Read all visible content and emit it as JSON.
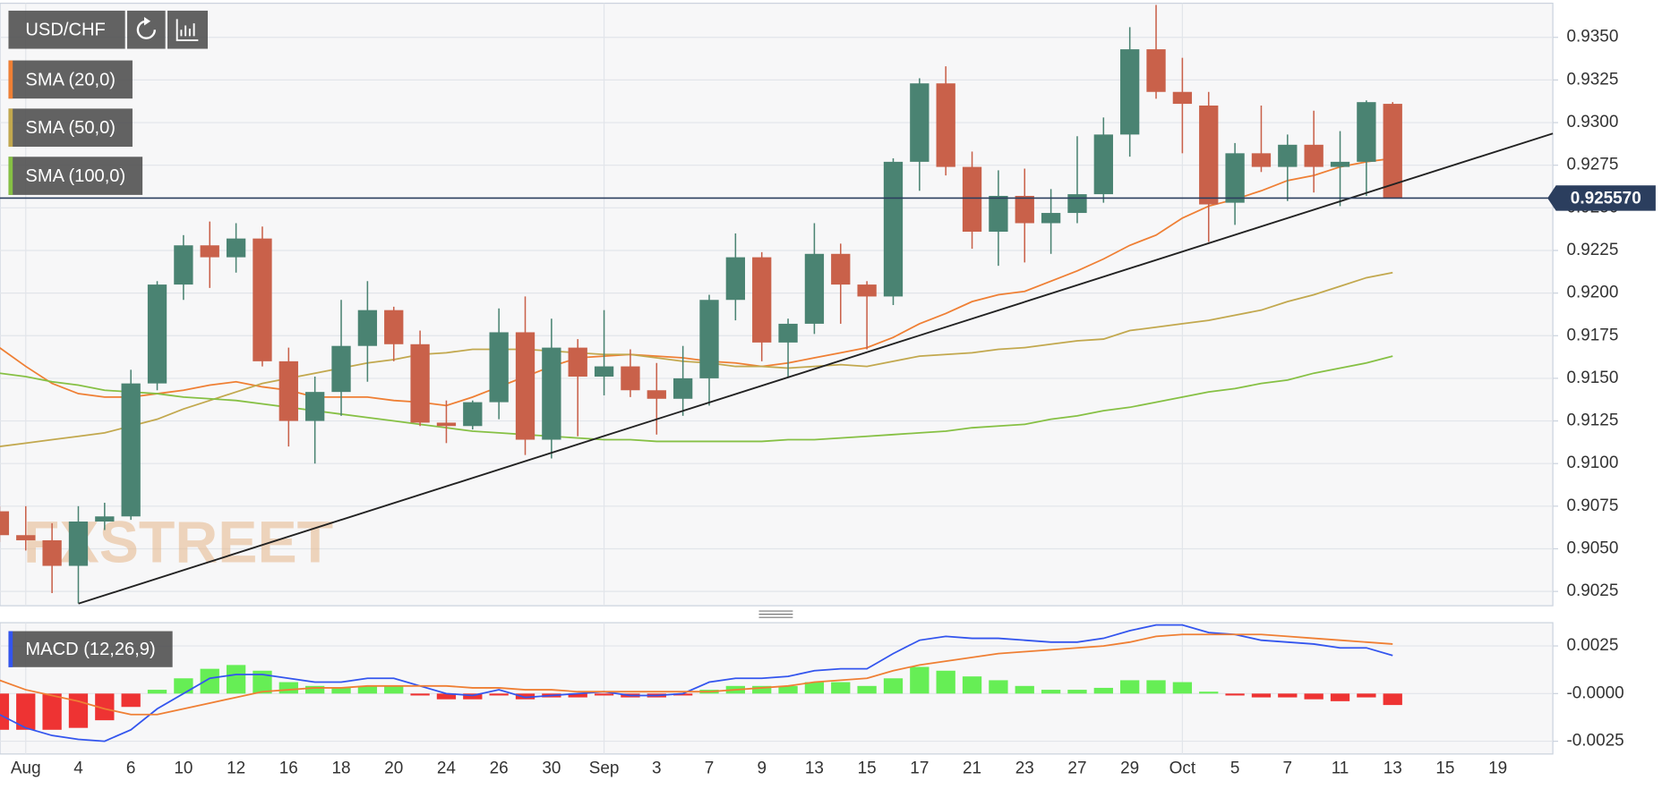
{
  "chart_data": {
    "type": "candlestick",
    "symbol": "USD/CHF",
    "watermark": "FXSTREET",
    "up_color": "#4a8372",
    "down_color": "#c9614a",
    "categories": [
      null,
      "Aug",
      null,
      "4",
      null,
      "6",
      null,
      "10",
      null,
      "12",
      null,
      "16",
      null,
      "18",
      null,
      "20",
      null,
      "24",
      null,
      "26",
      null,
      "30",
      null,
      "Sep",
      null,
      "3",
      null,
      "7",
      null,
      "9",
      null,
      "13",
      null,
      "15",
      null,
      "17",
      null,
      "21",
      null,
      "23",
      null,
      "27",
      null,
      "29",
      null,
      "Oct",
      null,
      "5",
      null,
      "7",
      null,
      "11",
      null,
      "13",
      null,
      "15",
      null,
      "19",
      null,
      null
    ],
    "open": [
      0.9072,
      0.9058,
      0.9055,
      0.904,
      0.9066,
      0.9069,
      0.9147,
      0.9205,
      0.9228,
      0.9221,
      0.9232,
      0.916,
      0.9125,
      0.9142,
      0.9169,
      0.919,
      0.917,
      0.9124,
      0.9122,
      0.9136,
      0.9177,
      0.9114,
      0.9168,
      0.9151,
      0.9157,
      0.9143,
      0.9138,
      0.915,
      0.9196,
      0.9221,
      0.9171,
      0.9182,
      0.9223,
      0.9205,
      0.9198,
      0.9277,
      0.9323,
      0.9274,
      0.9236,
      0.9257,
      0.9241,
      0.9247,
      0.9258,
      0.9293,
      0.9343,
      0.9318,
      0.931,
      0.9253,
      0.9282,
      0.9274,
      0.9287,
      0.9274,
      0.9277,
      0.9311,
      null,
      null,
      null,
      null,
      null,
      null
    ],
    "high": [
      0.9075,
      0.9075,
      0.9065,
      0.9075,
      0.9077,
      0.9155,
      0.9207,
      0.9234,
      0.9242,
      0.9241,
      0.9239,
      0.9168,
      0.9151,
      0.9196,
      0.9207,
      0.9192,
      0.9178,
      0.9137,
      0.9137,
      0.9191,
      0.9198,
      0.9185,
      0.9173,
      0.919,
      0.9167,
      0.9159,
      0.9169,
      0.9199,
      0.9235,
      0.9224,
      0.9185,
      0.9241,
      0.9229,
      0.9207,
      0.9279,
      0.9326,
      0.9333,
      0.9283,
      0.9272,
      0.9273,
      0.9261,
      0.9292,
      0.9303,
      0.9356,
      0.9369,
      0.9338,
      0.9318,
      0.9288,
      0.931,
      0.9293,
      0.9307,
      0.9295,
      0.9313,
      0.9312,
      null,
      null,
      null,
      null,
      null,
      null
    ],
    "low": [
      0.9054,
      0.9049,
      0.9024,
      0.9018,
      0.9061,
      0.9067,
      0.9143,
      0.9196,
      0.9203,
      0.9212,
      0.9157,
      0.911,
      0.91,
      0.9128,
      0.9148,
      0.916,
      0.9122,
      0.9112,
      0.912,
      0.9126,
      0.9105,
      0.9103,
      0.9116,
      0.914,
      0.9139,
      0.9117,
      0.9128,
      0.9134,
      0.9184,
      0.916,
      0.9151,
      0.9176,
      0.9182,
      0.9167,
      0.9193,
      0.926,
      0.9269,
      0.9226,
      0.9216,
      0.9218,
      0.9223,
      0.9241,
      0.9253,
      0.928,
      0.9314,
      0.9282,
      0.923,
      0.924,
      0.9271,
      0.9254,
      0.9259,
      0.9251,
      0.9257,
      0.92557,
      null,
      null,
      null,
      null,
      null,
      null
    ],
    "close": [
      0.9058,
      0.9055,
      0.904,
      0.9066,
      0.9069,
      0.9147,
      0.9205,
      0.9228,
      0.9221,
      0.9232,
      0.916,
      0.9125,
      0.9142,
      0.9169,
      0.919,
      0.917,
      0.9124,
      0.9122,
      0.9136,
      0.9177,
      0.9114,
      0.9168,
      0.9151,
      0.9157,
      0.9143,
      0.9138,
      0.915,
      0.9196,
      0.9221,
      0.9171,
      0.9182,
      0.9223,
      0.9205,
      0.9198,
      0.9277,
      0.9323,
      0.9274,
      0.9236,
      0.9257,
      0.9241,
      0.9247,
      0.9258,
      0.9293,
      0.9343,
      0.9318,
      0.9311,
      0.9252,
      0.9282,
      0.9274,
      0.9287,
      0.9274,
      0.9277,
      0.9312,
      0.92557,
      null,
      null,
      null,
      null,
      null,
      null
    ],
    "overlays": [
      {
        "name": "SMA (20,0)",
        "color": "#ef7f34",
        "values": [
          0.9168,
          0.9157,
          0.9147,
          0.9141,
          0.9139,
          0.9139,
          0.9141,
          0.9143,
          0.9146,
          0.9148,
          0.9145,
          0.9143,
          0.9139,
          0.9139,
          0.9139,
          0.9137,
          0.9136,
          0.9134,
          0.9139,
          0.9145,
          0.9151,
          0.9157,
          0.9162,
          0.9163,
          0.9164,
          0.9163,
          0.9162,
          0.916,
          0.9159,
          0.9157,
          0.9159,
          0.9162,
          0.9165,
          0.9168,
          0.9174,
          0.9182,
          0.9188,
          0.9195,
          0.9199,
          0.9201,
          0.9207,
          0.9213,
          0.922,
          0.9228,
          0.9234,
          0.9244,
          0.9251,
          0.9255,
          0.926,
          0.9266,
          0.9269,
          0.9274,
          0.9277,
          0.9279,
          null,
          null,
          null,
          null,
          null,
          null
        ]
      },
      {
        "name": "SMA (50,0)",
        "color": "#c2a84e",
        "values": [
          0.911,
          0.9112,
          0.9114,
          0.9116,
          0.9118,
          0.9122,
          0.9126,
          0.9132,
          0.9137,
          0.9142,
          0.9147,
          0.915,
          0.9153,
          0.9156,
          0.9159,
          0.9161,
          0.9164,
          0.9165,
          0.9167,
          0.9167,
          0.9167,
          0.9166,
          0.9165,
          0.9164,
          0.9164,
          0.9162,
          0.916,
          0.9159,
          0.9157,
          0.9157,
          0.9156,
          0.9157,
          0.9158,
          0.9157,
          0.916,
          0.9163,
          0.9164,
          0.9165,
          0.9167,
          0.9168,
          0.917,
          0.9172,
          0.9173,
          0.9178,
          0.918,
          0.9182,
          0.9184,
          0.9187,
          0.919,
          0.9195,
          0.9199,
          0.9204,
          0.9209,
          0.9212,
          null,
          null,
          null,
          null,
          null,
          null
        ]
      },
      {
        "name": "SMA (100,0)",
        "color": "#86c044",
        "values": [
          0.9153,
          0.9151,
          0.9148,
          0.9146,
          0.9143,
          0.9142,
          0.9141,
          0.9139,
          0.9138,
          0.9137,
          0.9135,
          0.9133,
          0.9131,
          0.9129,
          0.9127,
          0.9125,
          0.9123,
          0.9121,
          0.9119,
          0.9118,
          0.9117,
          0.9116,
          0.9115,
          0.9114,
          0.9114,
          0.9113,
          0.9113,
          0.9113,
          0.9113,
          0.9113,
          0.9114,
          0.9114,
          0.9115,
          0.9116,
          0.9117,
          0.9118,
          0.9119,
          0.9121,
          0.9122,
          0.9123,
          0.9126,
          0.9128,
          0.9131,
          0.9133,
          0.9136,
          0.9139,
          0.9142,
          0.9144,
          0.9147,
          0.9149,
          0.9153,
          0.9156,
          0.9159,
          0.9163,
          null,
          null,
          null,
          null,
          null,
          null
        ]
      }
    ],
    "ylim": [
      0.90166,
      0.937
    ],
    "yticks": [
      {
        "value": 0.9025,
        "label": "0.9025"
      },
      {
        "value": 0.905,
        "label": "0.9050"
      },
      {
        "value": 0.9075,
        "label": "0.9075"
      },
      {
        "value": 0.91,
        "label": "0.9100"
      },
      {
        "value": 0.9125,
        "label": "0.9125"
      },
      {
        "value": 0.915,
        "label": "0.9150"
      },
      {
        "value": 0.9175,
        "label": "0.9175"
      },
      {
        "value": 0.92,
        "label": "0.9200"
      },
      {
        "value": 0.9225,
        "label": "0.9225"
      },
      {
        "value": 0.925,
        "label": "0.9250"
      },
      {
        "value": 0.9275,
        "label": "0.9275"
      },
      {
        "value": 0.93,
        "label": "0.9300"
      },
      {
        "value": 0.9325,
        "label": "0.9325"
      },
      {
        "value": 0.935,
        "label": "0.9350"
      }
    ],
    "grid": true,
    "current_price": {
      "value": 0.92557,
      "label": "0.925570",
      "color": "#2b3e5e"
    },
    "macd": {
      "name": "MACD (12,26,9)",
      "ylim": [
        -0.00317,
        0.00372
      ],
      "yticks": [
        {
          "value": -0.0025,
          "label": "-0.0025"
        },
        {
          "value": 0,
          "label": "-0.0000"
        },
        {
          "value": 0.0025,
          "label": "0.0025"
        }
      ],
      "histogram": {
        "color_up": "#66ee55",
        "color_down": "#ee3333",
        "values": [
          -0.0019,
          -0.0019,
          -0.0019,
          -0.0018,
          -0.0014,
          -0.0007,
          0.0002,
          0.0008,
          0.0013,
          0.0015,
          0.0012,
          0.0006,
          0.0004,
          0.0003,
          0.0004,
          0.0004,
          -0.0001,
          -0.0003,
          -0.0003,
          -0.0001,
          -0.0003,
          -0.0002,
          -0.0002,
          -0.0001,
          -0.0002,
          -0.0002,
          -0.0001,
          0.0002,
          0.0004,
          0.0004,
          0.0004,
          0.0006,
          0.0006,
          0.0004,
          0.0008,
          0.0014,
          0.0012,
          0.0009,
          0.0007,
          0.0004,
          0.0002,
          0.0002,
          0.0003,
          0.0007,
          0.0007,
          0.0006,
          0.0001,
          -0.0001,
          -0.0002,
          -0.0002,
          -0.0003,
          -0.0004,
          -0.0002,
          -0.0006,
          null,
          null,
          null,
          null,
          null,
          null
        ]
      },
      "series": [
        {
          "color": "#3355ee",
          "values": [
            -0.0011,
            -0.0018,
            -0.0022,
            -0.0024,
            -0.0025,
            -0.0019,
            -0.0008,
            0.0,
            0.0008,
            0.001,
            0.001,
            0.0008,
            0.0006,
            0.0006,
            0.0008,
            0.0008,
            0.0004,
            0.0,
            -0.0001,
            0.0002,
            -0.0002,
            -0.0001,
            0.0,
            0.0001,
            -0.0001,
            -0.0001,
            0.0,
            0.0006,
            0.0008,
            0.0008,
            0.0009,
            0.0012,
            0.0013,
            0.0013,
            0.0021,
            0.0028,
            0.003,
            0.0029,
            0.0029,
            0.0028,
            0.0027,
            0.0027,
            0.0029,
            0.0033,
            0.0036,
            0.0036,
            0.0032,
            0.0031,
            0.0028,
            0.0027,
            0.0026,
            0.0024,
            0.0024,
            0.002,
            null,
            null,
            null,
            null,
            null,
            null
          ]
        },
        {
          "color": "#ef7f34",
          "values": [
            0.0007,
            0.0002,
            -0.0001,
            -0.0004,
            -0.0008,
            -0.0011,
            -0.0011,
            -0.0008,
            -0.0005,
            -0.0002,
            0.0001,
            0.0002,
            0.0003,
            0.0003,
            0.0004,
            0.0004,
            0.0004,
            0.0004,
            0.0003,
            0.0003,
            0.0002,
            0.0002,
            0.0001,
            0.0001,
            0.0001,
            0.0001,
            0.0001,
            0.0001,
            0.0002,
            0.0003,
            0.0004,
            0.0006,
            0.0007,
            0.0008,
            0.0012,
            0.0015,
            0.0017,
            0.0019,
            0.0021,
            0.0022,
            0.0023,
            0.0024,
            0.0025,
            0.0027,
            0.003,
            0.0031,
            0.0031,
            0.0031,
            0.0031,
            0.003,
            0.0029,
            0.0028,
            0.0027,
            0.0026,
            null,
            null,
            null,
            null,
            null,
            null
          ]
        }
      ]
    }
  }
}
